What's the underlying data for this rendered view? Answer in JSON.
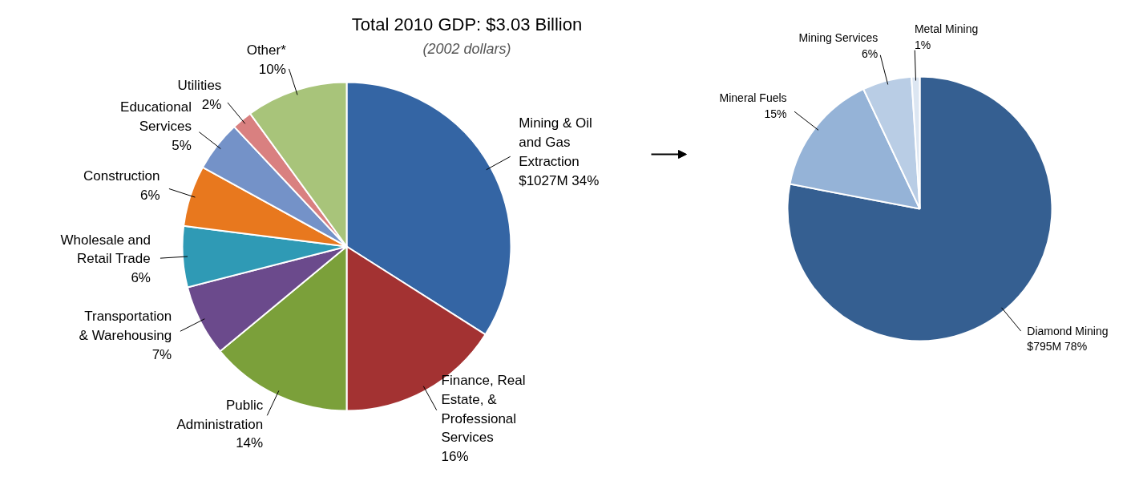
{
  "chart_data": [
    {
      "type": "pie",
      "title": "Total 2010 GDP: $3.03 Billion",
      "subtitle": "(2002 dollars)",
      "categories": [
        "Mining & Oil and Gas Extraction",
        "Finance, Real Estate, & Professional Services",
        "Public Administration",
        "Transportation & Warehousing",
        "Wholesale and Retail Trade",
        "Construction",
        "Educational Services",
        "Utilities",
        "Other*"
      ],
      "values": [
        34,
        16,
        14,
        7,
        6,
        6,
        5,
        2,
        10
      ],
      "value_labels": [
        "$1027M 34%",
        "16%",
        "14%",
        "7%",
        "6%",
        "6%",
        "5%",
        "2%",
        "10%"
      ],
      "colors": [
        "#3465a4",
        "#a33232",
        "#7ba03a",
        "#6b4a8c",
        "#2f9ab5",
        "#e8781e",
        "#7492c8",
        "#d98080",
        "#a8c47a"
      ]
    },
    {
      "type": "pie",
      "categories": [
        "Diamond Mining",
        "Mineral Fuels",
        "Mining Services",
        "Metal Mining"
      ],
      "values": [
        78,
        15,
        6,
        1
      ],
      "value_labels": [
        "$795M 78%",
        "15%",
        "6%",
        "1%"
      ],
      "colors": [
        "#355f91",
        "#95b3d7",
        "#b9cde5",
        "#dce6f2"
      ]
    }
  ]
}
